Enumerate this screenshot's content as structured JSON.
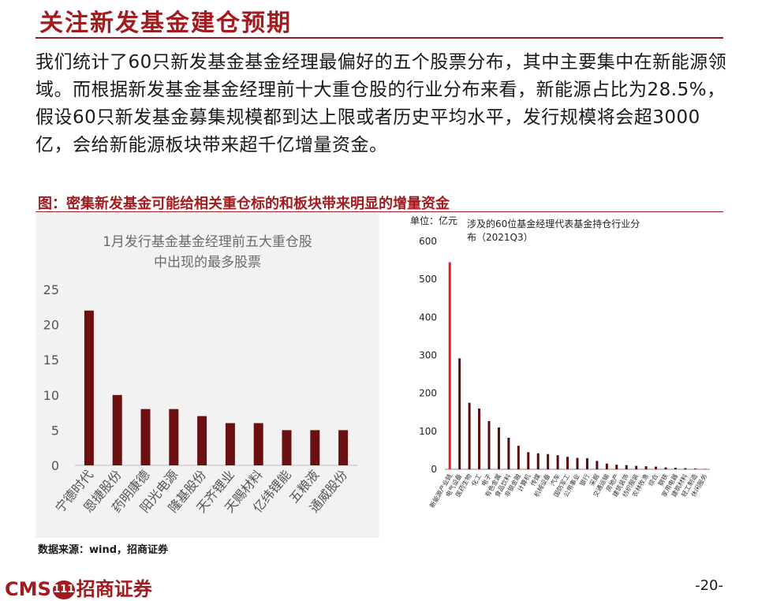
{
  "page": {
    "title": "关注新发基金建仓预期",
    "paragraph": "我们统计了60只新发基金基金经理最偏好的五个股票分布，其中主要集中在新能源领域。而根据新发基金基金经理前十大重仓股的行业分布来看，新能源占比为28.5%，假设60只新发基金募集规模都到达上限或者历史平均水平，发行规模将会超3000亿，会给新能源板块带来超千亿增量资金。",
    "figure_title": "图：密集新发基金可能给相关重仓标的和板块带来明显的增量资金",
    "source": "数据来源：wind，招商证券",
    "logo_left": "CMS",
    "logo_badge": "111",
    "logo_right": "招商证券",
    "page_number": "-20-"
  },
  "colors": {
    "accent": "#a11b1f",
    "bar_dark": "#6b0f10",
    "bar_highlight": "#e02020",
    "bar_dark_right": "#5a0c0c"
  },
  "chart_data": [
    {
      "type": "bar",
      "title": "1月发行基金基金经理前五大重仓股中出现的最多股票",
      "title_lines": [
        "1月发行基金基金经理前五大重仓股",
        "中出现的最多股票"
      ],
      "categories": [
        "宁德时代",
        "恩捷股份",
        "药明康德",
        "阳光电源",
        "隆基股份",
        "天齐锂业",
        "天赐材料",
        "亿纬锂能",
        "五粮液",
        "通威股份"
      ],
      "values": [
        22,
        10,
        8,
        8,
        7,
        6,
        6,
        5,
        5,
        5
      ],
      "ylim": [
        0,
        25
      ],
      "yticks": [
        "0",
        "5",
        "10",
        "15",
        "20",
        "25"
      ],
      "grid": false,
      "legend": "none"
    },
    {
      "type": "bar",
      "title": "涉及的60位基金经理代表基金持仓行业分布（2021Q3）",
      "title_lines": [
        "涉及的60位基金经理代表基金持仓行业分",
        "布（2021Q3）"
      ],
      "unit": "单位：亿元",
      "categories": [
        "新能源产业链",
        "电气设备",
        "医药生物",
        "化工",
        "电子",
        "有色金属",
        "食品饮料",
        "非银金融",
        "计算机",
        "传媒",
        "机械设备",
        "汽车",
        "国防军工",
        "公用事业",
        "银行",
        "采掘",
        "交通运输",
        "房地产",
        "建筑装饰",
        "纺织服装",
        "农林牧渔",
        "综合",
        "钢铁",
        "家用电器",
        "建筑材料",
        "轻工制造",
        "休闲服务"
      ],
      "values": [
        545,
        292,
        175,
        160,
        127,
        110,
        83,
        62,
        45,
        42,
        40,
        37,
        33,
        30,
        29,
        22,
        15,
        12,
        11,
        9,
        8,
        7,
        5,
        4,
        3,
        2,
        1
      ],
      "highlight_index": 0,
      "ylim": [
        0,
        600
      ],
      "yticks": [
        "0",
        "100",
        "200",
        "300",
        "400",
        "500",
        "600"
      ],
      "grid": false,
      "legend": "none"
    }
  ]
}
